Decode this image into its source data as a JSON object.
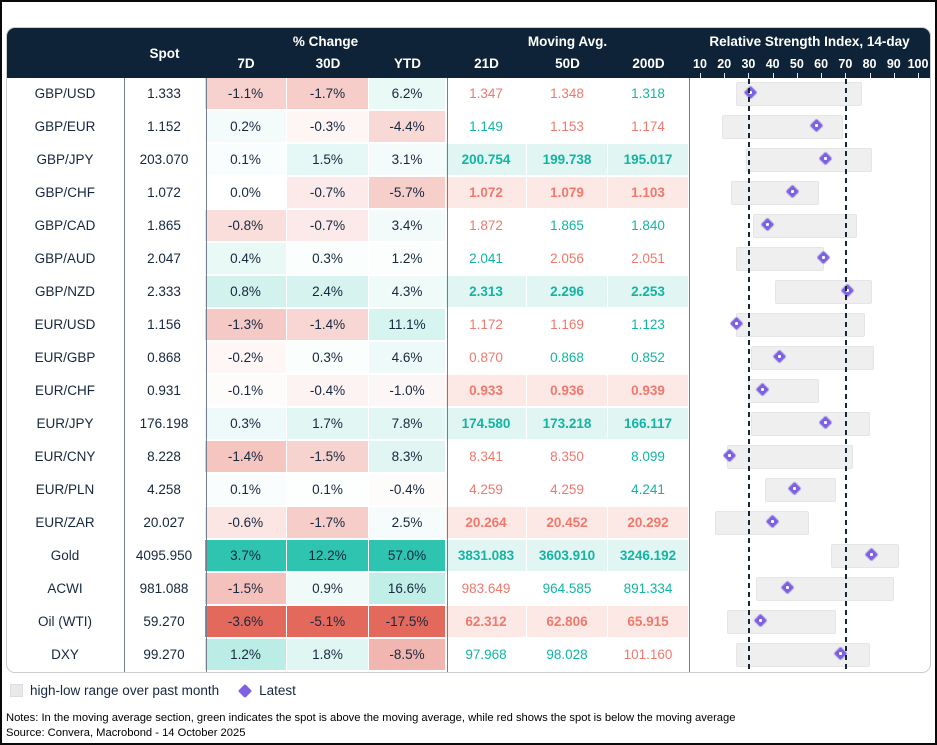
{
  "header": {
    "spot_label": "Spot",
    "pct_change_label": "% Change",
    "pct_change_cols": [
      "7D",
      "30D",
      "YTD"
    ],
    "moving_avg_label": "Moving Avg.",
    "moving_avg_cols": [
      "21D",
      "50D",
      "200D"
    ],
    "rsi_label": "Relative Strength Index, 14-day",
    "rsi_axis_ticks": [
      10,
      20,
      30,
      40,
      50,
      60,
      70,
      80,
      90,
      100
    ]
  },
  "legend": {
    "range_label": "high-low range over past month",
    "latest_label": "Latest"
  },
  "notes": "Notes: In the moving average section, green indicates the spot is above the moving average, while red shows the spot is below the moving average",
  "source": "Source: Convera, Macrobond - 14 October 2025",
  "colors": {
    "header_bg": "#0e2337",
    "positive": "#2ec4b0",
    "negative": "#e4695d",
    "ma_green": "#12b5a2",
    "ma_red": "#f0786c",
    "tint_green": "#e1f5f2",
    "tint_red": "#fce9e6",
    "diamond_purple": "#7e61e3",
    "range_gray": "#efeff0",
    "text_navy": "#16273e"
  },
  "chart_data": {
    "type": "table",
    "rsi_overbought_line": 70,
    "rsi_oversold_line": 30,
    "rsi_axis_range": [
      10,
      100
    ],
    "rows": [
      {
        "name": "GBP/USD",
        "spot": "1.333",
        "chg": [
          "-1.1%",
          "-1.7%",
          "6.2%"
        ],
        "chg_values": [
          -1.1,
          -1.7,
          6.2
        ],
        "ma": [
          "1.347",
          "1.348",
          "1.318"
        ],
        "ma_dir": [
          "below",
          "below",
          "above"
        ],
        "rsi": {
          "low": 25,
          "high": 77,
          "latest": 31
        }
      },
      {
        "name": "GBP/EUR",
        "spot": "1.152",
        "chg": [
          "0.2%",
          "-0.3%",
          "-4.4%"
        ],
        "chg_values": [
          0.2,
          -0.3,
          -4.4
        ],
        "ma": [
          "1.149",
          "1.153",
          "1.174"
        ],
        "ma_dir": [
          "above",
          "below",
          "below"
        ],
        "rsi": {
          "low": 19,
          "high": 69,
          "latest": 58
        }
      },
      {
        "name": "GBP/JPY",
        "spot": "203.070",
        "chg": [
          "0.1%",
          "1.5%",
          "3.1%"
        ],
        "chg_values": [
          0.1,
          1.5,
          3.1
        ],
        "ma": [
          "200.754",
          "199.738",
          "195.017"
        ],
        "ma_dir": [
          "above",
          "above",
          "above"
        ],
        "rsi": {
          "low": 29,
          "high": 81,
          "latest": 62
        }
      },
      {
        "name": "GBP/CHF",
        "spot": "1.072",
        "chg": [
          "0.0%",
          "-0.7%",
          "-5.7%"
        ],
        "chg_values": [
          0.0,
          -0.7,
          -5.7
        ],
        "ma": [
          "1.072",
          "1.079",
          "1.103"
        ],
        "ma_dir": [
          "below",
          "below",
          "below"
        ],
        "rsi": {
          "low": 23,
          "high": 59,
          "latest": 48
        }
      },
      {
        "name": "GBP/CAD",
        "spot": "1.865",
        "chg": [
          "-0.8%",
          "-0.7%",
          "3.4%"
        ],
        "chg_values": [
          -0.8,
          -0.7,
          3.4
        ],
        "ma": [
          "1.872",
          "1.865",
          "1.840"
        ],
        "ma_dir": [
          "below",
          "above",
          "above"
        ],
        "rsi": {
          "low": 32,
          "high": 75,
          "latest": 38
        }
      },
      {
        "name": "GBP/AUD",
        "spot": "2.047",
        "chg": [
          "0.4%",
          "0.3%",
          "1.2%"
        ],
        "chg_values": [
          0.4,
          0.3,
          1.2
        ],
        "ma": [
          "2.041",
          "2.056",
          "2.051"
        ],
        "ma_dir": [
          "above",
          "below",
          "below"
        ],
        "rsi": {
          "low": 25,
          "high": 61,
          "latest": 61
        }
      },
      {
        "name": "GBP/NZD",
        "spot": "2.333",
        "chg": [
          "0.8%",
          "2.4%",
          "4.3%"
        ],
        "chg_values": [
          0.8,
          2.4,
          4.3
        ],
        "ma": [
          "2.313",
          "2.296",
          "2.253"
        ],
        "ma_dir": [
          "above",
          "above",
          "above"
        ],
        "rsi": {
          "low": 41,
          "high": 81,
          "latest": 71
        }
      },
      {
        "name": "EUR/USD",
        "spot": "1.156",
        "chg": [
          "-1.3%",
          "-1.4%",
          "11.1%"
        ],
        "chg_values": [
          -1.3,
          -1.4,
          11.1
        ],
        "ma": [
          "1.172",
          "1.169",
          "1.123"
        ],
        "ma_dir": [
          "below",
          "below",
          "above"
        ],
        "rsi": {
          "low": 25,
          "high": 78,
          "latest": 25
        }
      },
      {
        "name": "EUR/GBP",
        "spot": "0.868",
        "chg": [
          "-0.2%",
          "0.3%",
          "4.6%"
        ],
        "chg_values": [
          -0.2,
          0.3,
          4.6
        ],
        "ma": [
          "0.870",
          "0.868",
          "0.852"
        ],
        "ma_dir": [
          "below",
          "above",
          "above"
        ],
        "rsi": {
          "low": 31,
          "high": 82,
          "latest": 43
        }
      },
      {
        "name": "EUR/CHF",
        "spot": "0.931",
        "chg": [
          "-0.1%",
          "-0.4%",
          "-1.0%"
        ],
        "chg_values": [
          -0.1,
          -0.4,
          -1.0
        ],
        "ma": [
          "0.933",
          "0.936",
          "0.939"
        ],
        "ma_dir": [
          "below",
          "below",
          "below"
        ],
        "rsi": {
          "low": 30,
          "high": 59,
          "latest": 36
        }
      },
      {
        "name": "EUR/JPY",
        "spot": "176.198",
        "chg": [
          "0.3%",
          "1.7%",
          "7.8%"
        ],
        "chg_values": [
          0.3,
          1.7,
          7.8
        ],
        "ma": [
          "174.580",
          "173.218",
          "166.117"
        ],
        "ma_dir": [
          "above",
          "above",
          "above"
        ],
        "rsi": {
          "low": 31,
          "high": 80,
          "latest": 62
        }
      },
      {
        "name": "EUR/CNY",
        "spot": "8.228",
        "chg": [
          "-1.4%",
          "-1.5%",
          "8.3%"
        ],
        "chg_values": [
          -1.4,
          -1.5,
          8.3
        ],
        "ma": [
          "8.341",
          "8.350",
          "8.099"
        ],
        "ma_dir": [
          "below",
          "below",
          "above"
        ],
        "rsi": {
          "low": 21,
          "high": 73,
          "latest": 22
        }
      },
      {
        "name": "EUR/PLN",
        "spot": "4.258",
        "chg": [
          "0.1%",
          "0.1%",
          "-0.4%"
        ],
        "chg_values": [
          0.1,
          0.1,
          -0.4
        ],
        "ma": [
          "4.259",
          "4.259",
          "4.241"
        ],
        "ma_dir": [
          "below",
          "below",
          "above"
        ],
        "rsi": {
          "low": 37,
          "high": 66,
          "latest": 49
        }
      },
      {
        "name": "EUR/ZAR",
        "spot": "20.027",
        "chg": [
          "-0.6%",
          "-1.7%",
          "2.5%"
        ],
        "chg_values": [
          -0.6,
          -1.7,
          2.5
        ],
        "ma": [
          "20.264",
          "20.452",
          "20.292"
        ],
        "ma_dir": [
          "below",
          "below",
          "below"
        ],
        "rsi": {
          "low": 16,
          "high": 55,
          "latest": 40
        }
      },
      {
        "name": "Gold",
        "spot": "4095.950",
        "chg": [
          "3.7%",
          "12.2%",
          "57.0%"
        ],
        "chg_values": [
          3.7,
          12.2,
          57.0
        ],
        "ma": [
          "3831.083",
          "3603.910",
          "3246.192"
        ],
        "ma_dir": [
          "above",
          "above",
          "above"
        ],
        "rsi": {
          "low": 64,
          "high": 92,
          "latest": 81
        }
      },
      {
        "name": "ACWI",
        "spot": "981.088",
        "chg": [
          "-1.5%",
          "0.9%",
          "16.6%"
        ],
        "chg_values": [
          -1.5,
          0.9,
          16.6
        ],
        "ma": [
          "983.649",
          "964.585",
          "891.334"
        ],
        "ma_dir": [
          "below",
          "above",
          "above"
        ],
        "rsi": {
          "low": 33,
          "high": 90,
          "latest": 46
        }
      },
      {
        "name": "Oil (WTI)",
        "spot": "59.270",
        "chg": [
          "-3.6%",
          "-5.1%",
          "-17.5%"
        ],
        "chg_values": [
          -3.6,
          -5.1,
          -17.5
        ],
        "ma": [
          "62.312",
          "62.806",
          "65.915"
        ],
        "ma_dir": [
          "below",
          "below",
          "below"
        ],
        "rsi": {
          "low": 21,
          "high": 66,
          "latest": 35
        }
      },
      {
        "name": "DXY",
        "spot": "99.270",
        "chg": [
          "1.2%",
          "1.8%",
          "-8.5%"
        ],
        "chg_values": [
          1.2,
          1.8,
          -8.5
        ],
        "ma": [
          "97.968",
          "98.028",
          "101.160"
        ],
        "ma_dir": [
          "above",
          "above",
          "below"
        ],
        "rsi": {
          "low": 25,
          "high": 80,
          "latest": 68
        }
      }
    ]
  }
}
